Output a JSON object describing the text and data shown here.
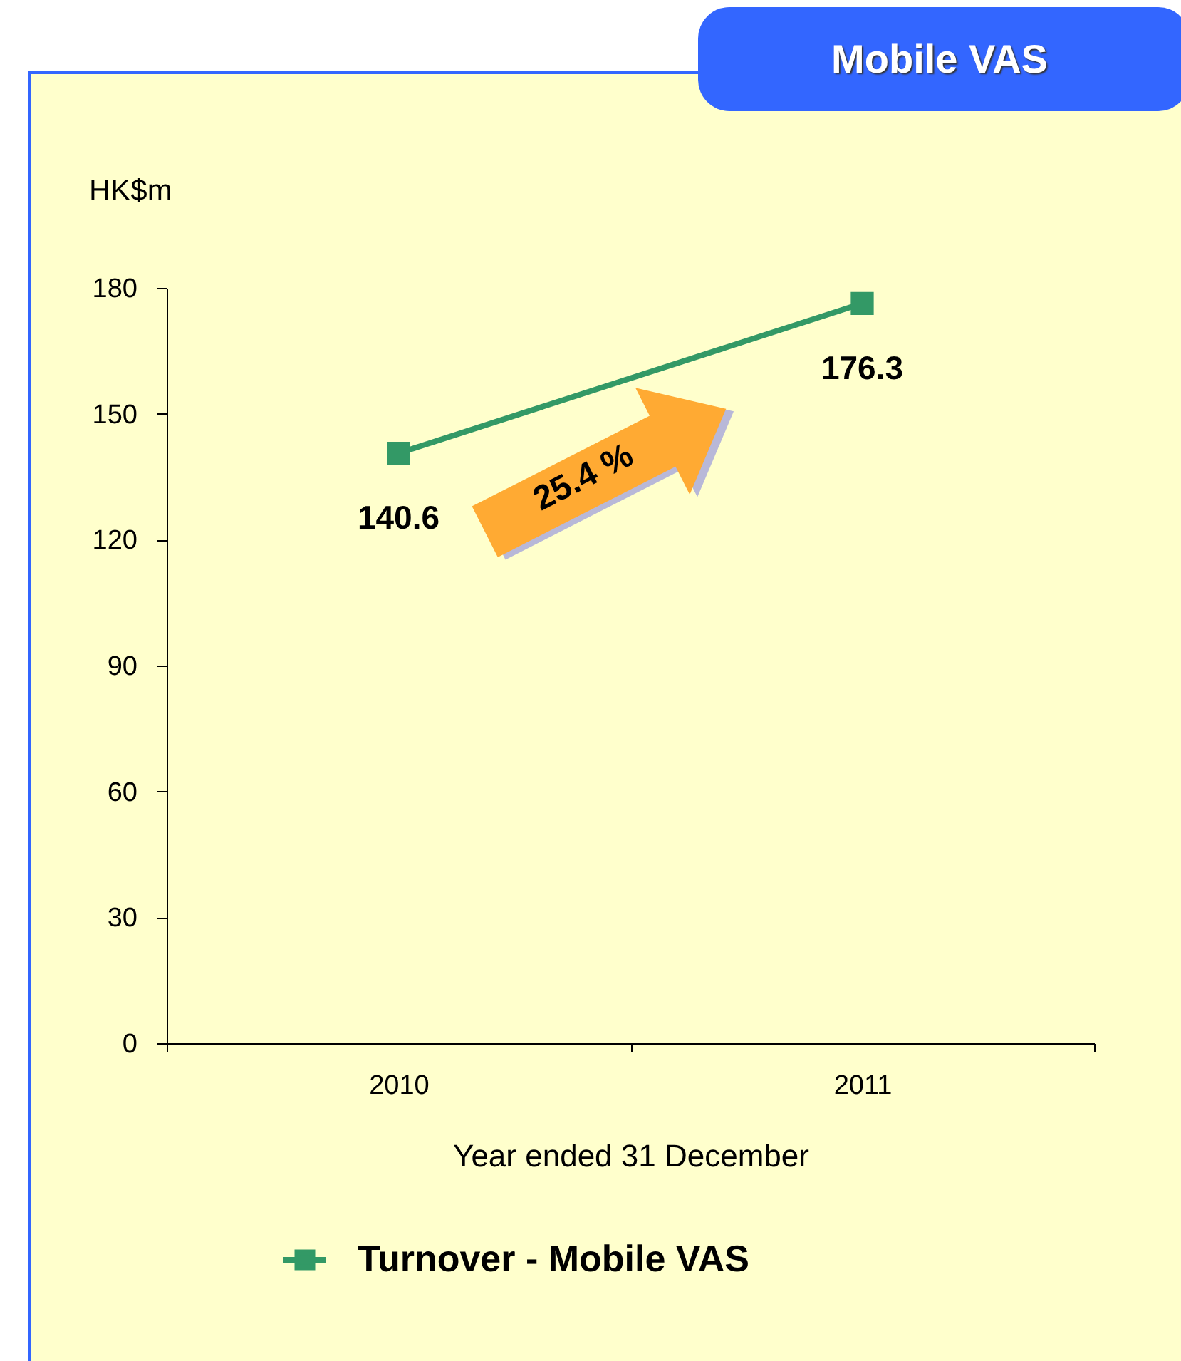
{
  "chart_data": {
    "type": "line",
    "title": "Mobile VAS",
    "xlabel": "Year ended 31 December",
    "ylabel": "HK$m",
    "categories": [
      "2010",
      "2011"
    ],
    "series": [
      {
        "name": "Turnover - Mobile VAS",
        "color": "#339966",
        "values": [
          140.6,
          176.3
        ]
      }
    ],
    "ylim": [
      0,
      180
    ],
    "yticks": [
      0,
      30,
      60,
      90,
      120,
      150,
      180
    ],
    "annotations": [
      "25.4 %"
    ],
    "data_labels": true,
    "marker": "square",
    "legend": "bottom",
    "grid": false
  }
}
